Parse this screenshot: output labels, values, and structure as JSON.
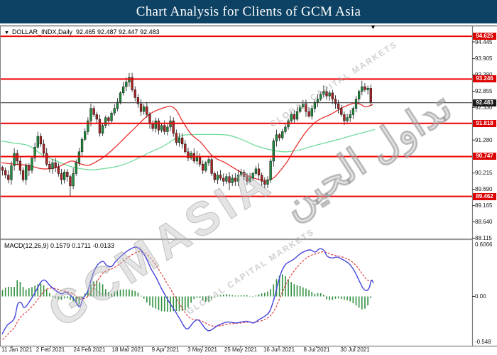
{
  "title_bar": {
    "title": "Chart Analysis for Clients of GCM Asia",
    "bg_color": "#0e4264",
    "text_color": "#ffffff"
  },
  "chart_window": {
    "symbol_marker": "▼",
    "symbol_label": "DOLLAR_INDX,Daily",
    "ohlc_values": "92.465 92.487 92.447 92.483",
    "scroll_marker": "▼",
    "indicator_label": "MACD(12,26,9)",
    "indicator_values": "0.1579 0.1711 -0.0133"
  },
  "colors": {
    "bull": "#1e8c3c",
    "bear": "#aa2323",
    "wick": "#111111",
    "ma_fast": "#e83030",
    "ma_slow": "#6fdc9a",
    "macd_line": "#4444dd",
    "signal_line": "#e03030",
    "hist": "#2f8f3f",
    "sr_line": "#ee0000",
    "current_line": "#3c3c3c",
    "sr_label_bg": "#dd0000",
    "current_label_bg": "#1a1a1a",
    "frame": "#808080"
  },
  "macd_axis": {
    "top": "0.6066",
    "zero": "0.00",
    "bottom": "-0.548"
  },
  "watermark": {
    "brand": "GCMASIA",
    "subtext": "GLOBAL CAPITAL MARKETS",
    "arabic": "تداول الحين"
  },
  "chart_data": {
    "type": "candlestick",
    "symbol": "DOLLAR_INDX",
    "timeframe": "Daily",
    "ohlc_display": {
      "open": 92.465,
      "high": 92.487,
      "low": 92.447,
      "close": 92.483
    },
    "current_price": 92.483,
    "support_resistance": [
      94.625,
      93.246,
      91.818,
      90.747,
      89.462
    ],
    "price_ticks": [
      94.445,
      93.905,
      93.38,
      92.855,
      92.33,
      91.28,
      90.215,
      89.69,
      89.165,
      88.64,
      88.115
    ],
    "dates": [
      "11 Jan 2021",
      "2 Feb 2021",
      "24 Feb 2021",
      "18 Mar 2021",
      "9 Apr 2021",
      "3 May 2021",
      "25 May 2021",
      "16 Jun 2021",
      "8 Jul 2021",
      "30 Jul 2021"
    ],
    "date_x": [
      17,
      71,
      126,
      180,
      233,
      285,
      339,
      393,
      446,
      500
    ],
    "closes": [
      90.3,
      90.15,
      90.0,
      90.45,
      90.85,
      90.6,
      90.3,
      90.0,
      90.45,
      90.3,
      90.7,
      91.05,
      91.4,
      91.15,
      90.85,
      90.5,
      90.35,
      90.55,
      90.4,
      90.2,
      90.0,
      90.25,
      90.1,
      89.8,
      90.2,
      90.55,
      90.9,
      91.3,
      91.55,
      91.9,
      92.3,
      92.1,
      91.95,
      91.5,
      91.75,
      92.0,
      91.9,
      92.15,
      92.3,
      92.5,
      92.8,
      93.0,
      93.15,
      93.3,
      92.9,
      92.65,
      92.45,
      92.2,
      92.35,
      92.1,
      91.8,
      91.65,
      91.9,
      91.6,
      91.75,
      91.55,
      91.7,
      91.9,
      91.5,
      91.2,
      91.35,
      91.15,
      90.9,
      90.7,
      90.85,
      90.6,
      90.75,
      90.5,
      90.3,
      90.55,
      90.65,
      90.2,
      90.0,
      90.15,
      90.05,
      89.95,
      90.1,
      89.9,
      90.05,
      89.95,
      90.15,
      90.25,
      90.1,
      89.95,
      90.05,
      90.2,
      90.35,
      90.15,
      89.95,
      89.85,
      90.0,
      90.6,
      91.25,
      91.45,
      91.35,
      91.55,
      91.7,
      91.9,
      92.1,
      91.95,
      92.2,
      92.35,
      92.45,
      92.2,
      92.05,
      92.3,
      92.5,
      92.6,
      92.75,
      92.85,
      92.7,
      92.8,
      92.6,
      92.45,
      92.3,
      92.1,
      91.9,
      92.0,
      92.1,
      92.3,
      92.6,
      92.85,
      93.0,
      92.9,
      92.95,
      92.483
    ],
    "wick_high_overrides": {
      "12": 91.55,
      "43": 93.44,
      "109": 93.04,
      "122": 93.19
    },
    "wick_low_overrides": {
      "23": 89.45,
      "77": 89.66,
      "89": 89.72
    },
    "ma_fast_waypoints": [
      [
        2,
        90.55
      ],
      [
        20,
        90.5
      ],
      [
        40,
        90.46
      ],
      [
        60,
        90.35
      ],
      [
        80,
        90.4
      ],
      [
        100,
        90.6
      ],
      [
        112,
        90.52
      ],
      [
        125,
        90.47
      ],
      [
        140,
        90.64
      ],
      [
        150,
        90.8
      ],
      [
        160,
        91.0
      ],
      [
        170,
        91.22
      ],
      [
        180,
        91.45
      ],
      [
        190,
        91.67
      ],
      [
        200,
        91.9
      ],
      [
        210,
        92.1
      ],
      [
        220,
        92.23
      ],
      [
        232,
        92.33
      ],
      [
        240,
        92.37
      ],
      [
        248,
        92.25
      ],
      [
        258,
        91.85
      ],
      [
        270,
        91.45
      ],
      [
        283,
        91.2
      ],
      [
        300,
        90.75
      ],
      [
        317,
        90.55
      ],
      [
        335,
        90.3
      ],
      [
        350,
        90.12
      ],
      [
        362,
        90.02
      ],
      [
        375,
        89.98
      ],
      [
        385,
        90.05
      ],
      [
        395,
        90.3
      ],
      [
        405,
        90.6
      ],
      [
        415,
        91.0
      ],
      [
        425,
        91.35
      ],
      [
        433,
        91.6
      ],
      [
        445,
        91.87
      ],
      [
        455,
        92.0
      ],
      [
        467,
        92.12
      ],
      [
        480,
        92.3
      ],
      [
        492,
        92.42
      ],
      [
        500,
        92.47
      ],
      [
        508,
        92.43
      ],
      [
        515,
        92.35
      ],
      [
        525,
        92.42
      ]
    ],
    "ma_slow_waypoints": [
      [
        2,
        91.25
      ],
      [
        20,
        91.18
      ],
      [
        40,
        91.1
      ],
      [
        60,
        90.8
      ],
      [
        80,
        90.6
      ],
      [
        100,
        90.42
      ],
      [
        115,
        90.35
      ],
      [
        130,
        90.32
      ],
      [
        150,
        90.37
      ],
      [
        170,
        90.46
      ],
      [
        190,
        90.64
      ],
      [
        210,
        90.87
      ],
      [
        230,
        91.08
      ],
      [
        245,
        91.3
      ],
      [
        260,
        91.44
      ],
      [
        290,
        91.46
      ],
      [
        320,
        91.44
      ],
      [
        340,
        91.3
      ],
      [
        360,
        91.1
      ],
      [
        380,
        90.97
      ],
      [
        400,
        90.9
      ],
      [
        420,
        90.95
      ],
      [
        440,
        91.08
      ],
      [
        460,
        91.2
      ],
      [
        480,
        91.32
      ],
      [
        500,
        91.45
      ],
      [
        528,
        91.62
      ]
    ],
    "indicator": {
      "name": "MACD",
      "params": [
        12,
        26,
        9
      ],
      "macd": 0.1579,
      "signal": 0.1711,
      "histogram": -0.0133,
      "scale_max": 0.6066,
      "scale_min": -0.548,
      "signal_seed": -0.53,
      "macd_waypoints": [
        [
          3,
          -0.44
        ],
        [
          10,
          -0.34
        ],
        [
          20,
          -0.26
        ],
        [
          25,
          -0.09
        ],
        [
          30,
          -0.075
        ],
        [
          35,
          -0.13
        ],
        [
          47,
          0.01
        ],
        [
          57,
          0.16
        ],
        [
          63,
          0.19
        ],
        [
          70,
          0.13
        ],
        [
          80,
          0.06
        ],
        [
          87,
          0.03
        ],
        [
          93,
          0.05
        ],
        [
          103,
          -0.02
        ],
        [
          112,
          -0.12
        ],
        [
          117,
          -0.02
        ],
        [
          123,
          0.05
        ],
        [
          130,
          0.24
        ],
        [
          137,
          0.365
        ],
        [
          145,
          0.41
        ],
        [
          150,
          0.365
        ],
        [
          157,
          0.35
        ],
        [
          163,
          0.41
        ],
        [
          173,
          0.49
        ],
        [
          183,
          0.55
        ],
        [
          193,
          0.575
        ],
        [
          203,
          0.49
        ],
        [
          213,
          0.32
        ],
        [
          220,
          0.22
        ],
        [
          227,
          0.1
        ],
        [
          233,
          0.01
        ],
        [
          240,
          -0.09
        ],
        [
          247,
          -0.175
        ],
        [
          253,
          -0.26
        ],
        [
          263,
          -0.38
        ],
        [
          273,
          -0.3
        ],
        [
          280,
          -0.28
        ],
        [
          293,
          -0.4
        ],
        [
          307,
          -0.34
        ],
        [
          320,
          -0.3
        ],
        [
          333,
          -0.31
        ],
        [
          347,
          -0.29
        ],
        [
          357,
          -0.31
        ],
        [
          365,
          -0.27
        ],
        [
          373,
          -0.23
        ],
        [
          380,
          -0.17
        ],
        [
          387,
          0.0
        ],
        [
          391,
          0.14
        ],
        [
          397,
          0.3
        ],
        [
          403,
          0.38
        ],
        [
          413,
          0.43
        ],
        [
          423,
          0.5
        ],
        [
          430,
          0.53
        ],
        [
          437,
          0.545
        ],
        [
          444,
          0.52
        ],
        [
          450,
          0.557
        ],
        [
          456,
          0.54
        ],
        [
          461,
          0.47
        ],
        [
          468,
          0.45
        ],
        [
          475,
          0.46
        ],
        [
          483,
          0.43
        ],
        [
          492,
          0.38
        ],
        [
          499,
          0.3
        ],
        [
          505,
          0.2
        ],
        [
          511,
          0.1
        ],
        [
          516,
          0.07
        ],
        [
          520,
          0.1
        ],
        [
          523,
          0.19
        ],
        [
          526,
          0.158
        ]
      ]
    }
  }
}
